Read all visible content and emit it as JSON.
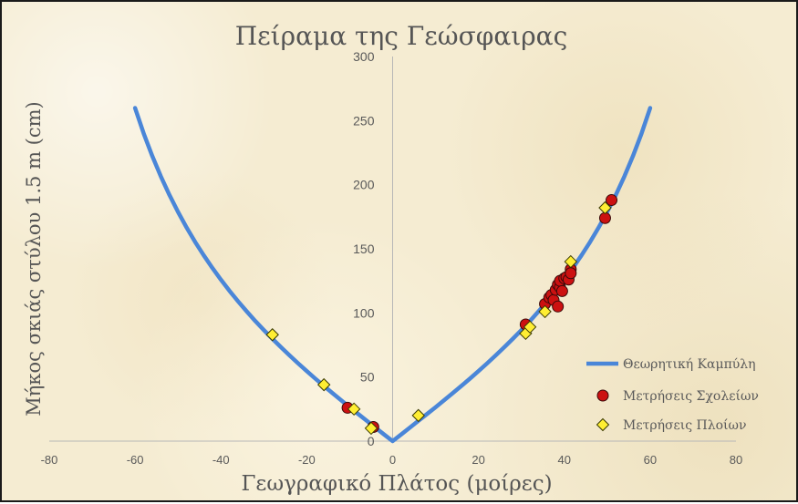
{
  "chart_data": {
    "type": "scatter",
    "title": "Πείραμα της Γεώσφαιρας",
    "xlabel": "Γεωγραφικό Πλάτος (μοίρες)",
    "ylabel": "Μήκος σκιάς στύλου 1.5 m (cm)",
    "xlim": [
      -80,
      80
    ],
    "ylim": [
      0,
      300
    ],
    "x_ticks": [
      "-80",
      "-60",
      "-40",
      "-20",
      "0",
      "20",
      "40",
      "60",
      "80"
    ],
    "y_ticks": [
      "0",
      "50",
      "100",
      "150",
      "200",
      "250",
      "300"
    ],
    "grid": false,
    "legend_position": "bottom-right",
    "series": [
      {
        "name": "Θεωρητική Καμπύλη",
        "kind": "line",
        "color": "#4a86d8",
        "x": [
          -60,
          -58,
          -56,
          -54,
          -52,
          -50,
          -48,
          -46,
          -44,
          -42,
          -40,
          -38,
          -36,
          -34,
          -32,
          -30,
          -28,
          -26,
          -24,
          -22,
          -20,
          -18,
          -16,
          -14,
          -12,
          -10,
          -8,
          -6,
          -4,
          -2,
          0,
          2,
          4,
          6,
          8,
          10,
          12,
          14,
          16,
          18,
          20,
          22,
          24,
          26,
          28,
          30,
          32,
          34,
          36,
          38,
          40,
          42,
          44,
          46,
          48,
          50,
          52,
          54,
          56,
          58,
          60
        ],
        "y": [
          259.8,
          240.0,
          222.4,
          206.5,
          192.0,
          178.8,
          166.6,
          155.3,
          144.9,
          135.1,
          125.9,
          117.2,
          109.0,
          101.2,
          93.7,
          86.6,
          79.8,
          73.2,
          66.8,
          60.6,
          54.6,
          48.7,
          43.0,
          37.4,
          31.9,
          26.4,
          21.1,
          15.8,
          10.5,
          5.2,
          0.0,
          5.2,
          10.5,
          15.8,
          21.1,
          26.4,
          31.9,
          37.4,
          43.0,
          48.7,
          54.6,
          60.6,
          66.8,
          73.2,
          79.8,
          86.6,
          93.7,
          101.2,
          109.0,
          117.2,
          125.9,
          135.1,
          144.9,
          155.3,
          166.6,
          178.8,
          192.0,
          206.5,
          222.4,
          240.0,
          259.8
        ]
      },
      {
        "name": "Μετρήσεις Σχολείων",
        "kind": "scatter",
        "marker": "circle",
        "color": "#cc1111",
        "x": [
          -10.5,
          -4.5,
          31,
          35.5,
          36.5,
          37,
          37.5,
          38,
          38.5,
          38.5,
          39,
          39,
          39.5,
          40,
          40.5,
          41,
          41.5,
          41.5,
          49.5,
          51
        ],
        "y": [
          26,
          11,
          91,
          107,
          112,
          114,
          110,
          118,
          105,
          122,
          120,
          125,
          117,
          127,
          128,
          126,
          134,
          131,
          174,
          188
        ]
      },
      {
        "name": "Μετρήσεις Πλοίων",
        "kind": "scatter",
        "marker": "diamond",
        "color": "#ffee33",
        "x": [
          -28,
          -16,
          -9,
          -5,
          6,
          31,
          32,
          35.5,
          41.5,
          49.5
        ],
        "y": [
          83,
          44,
          25,
          10,
          20,
          84,
          89,
          101,
          140,
          182
        ]
      }
    ]
  }
}
